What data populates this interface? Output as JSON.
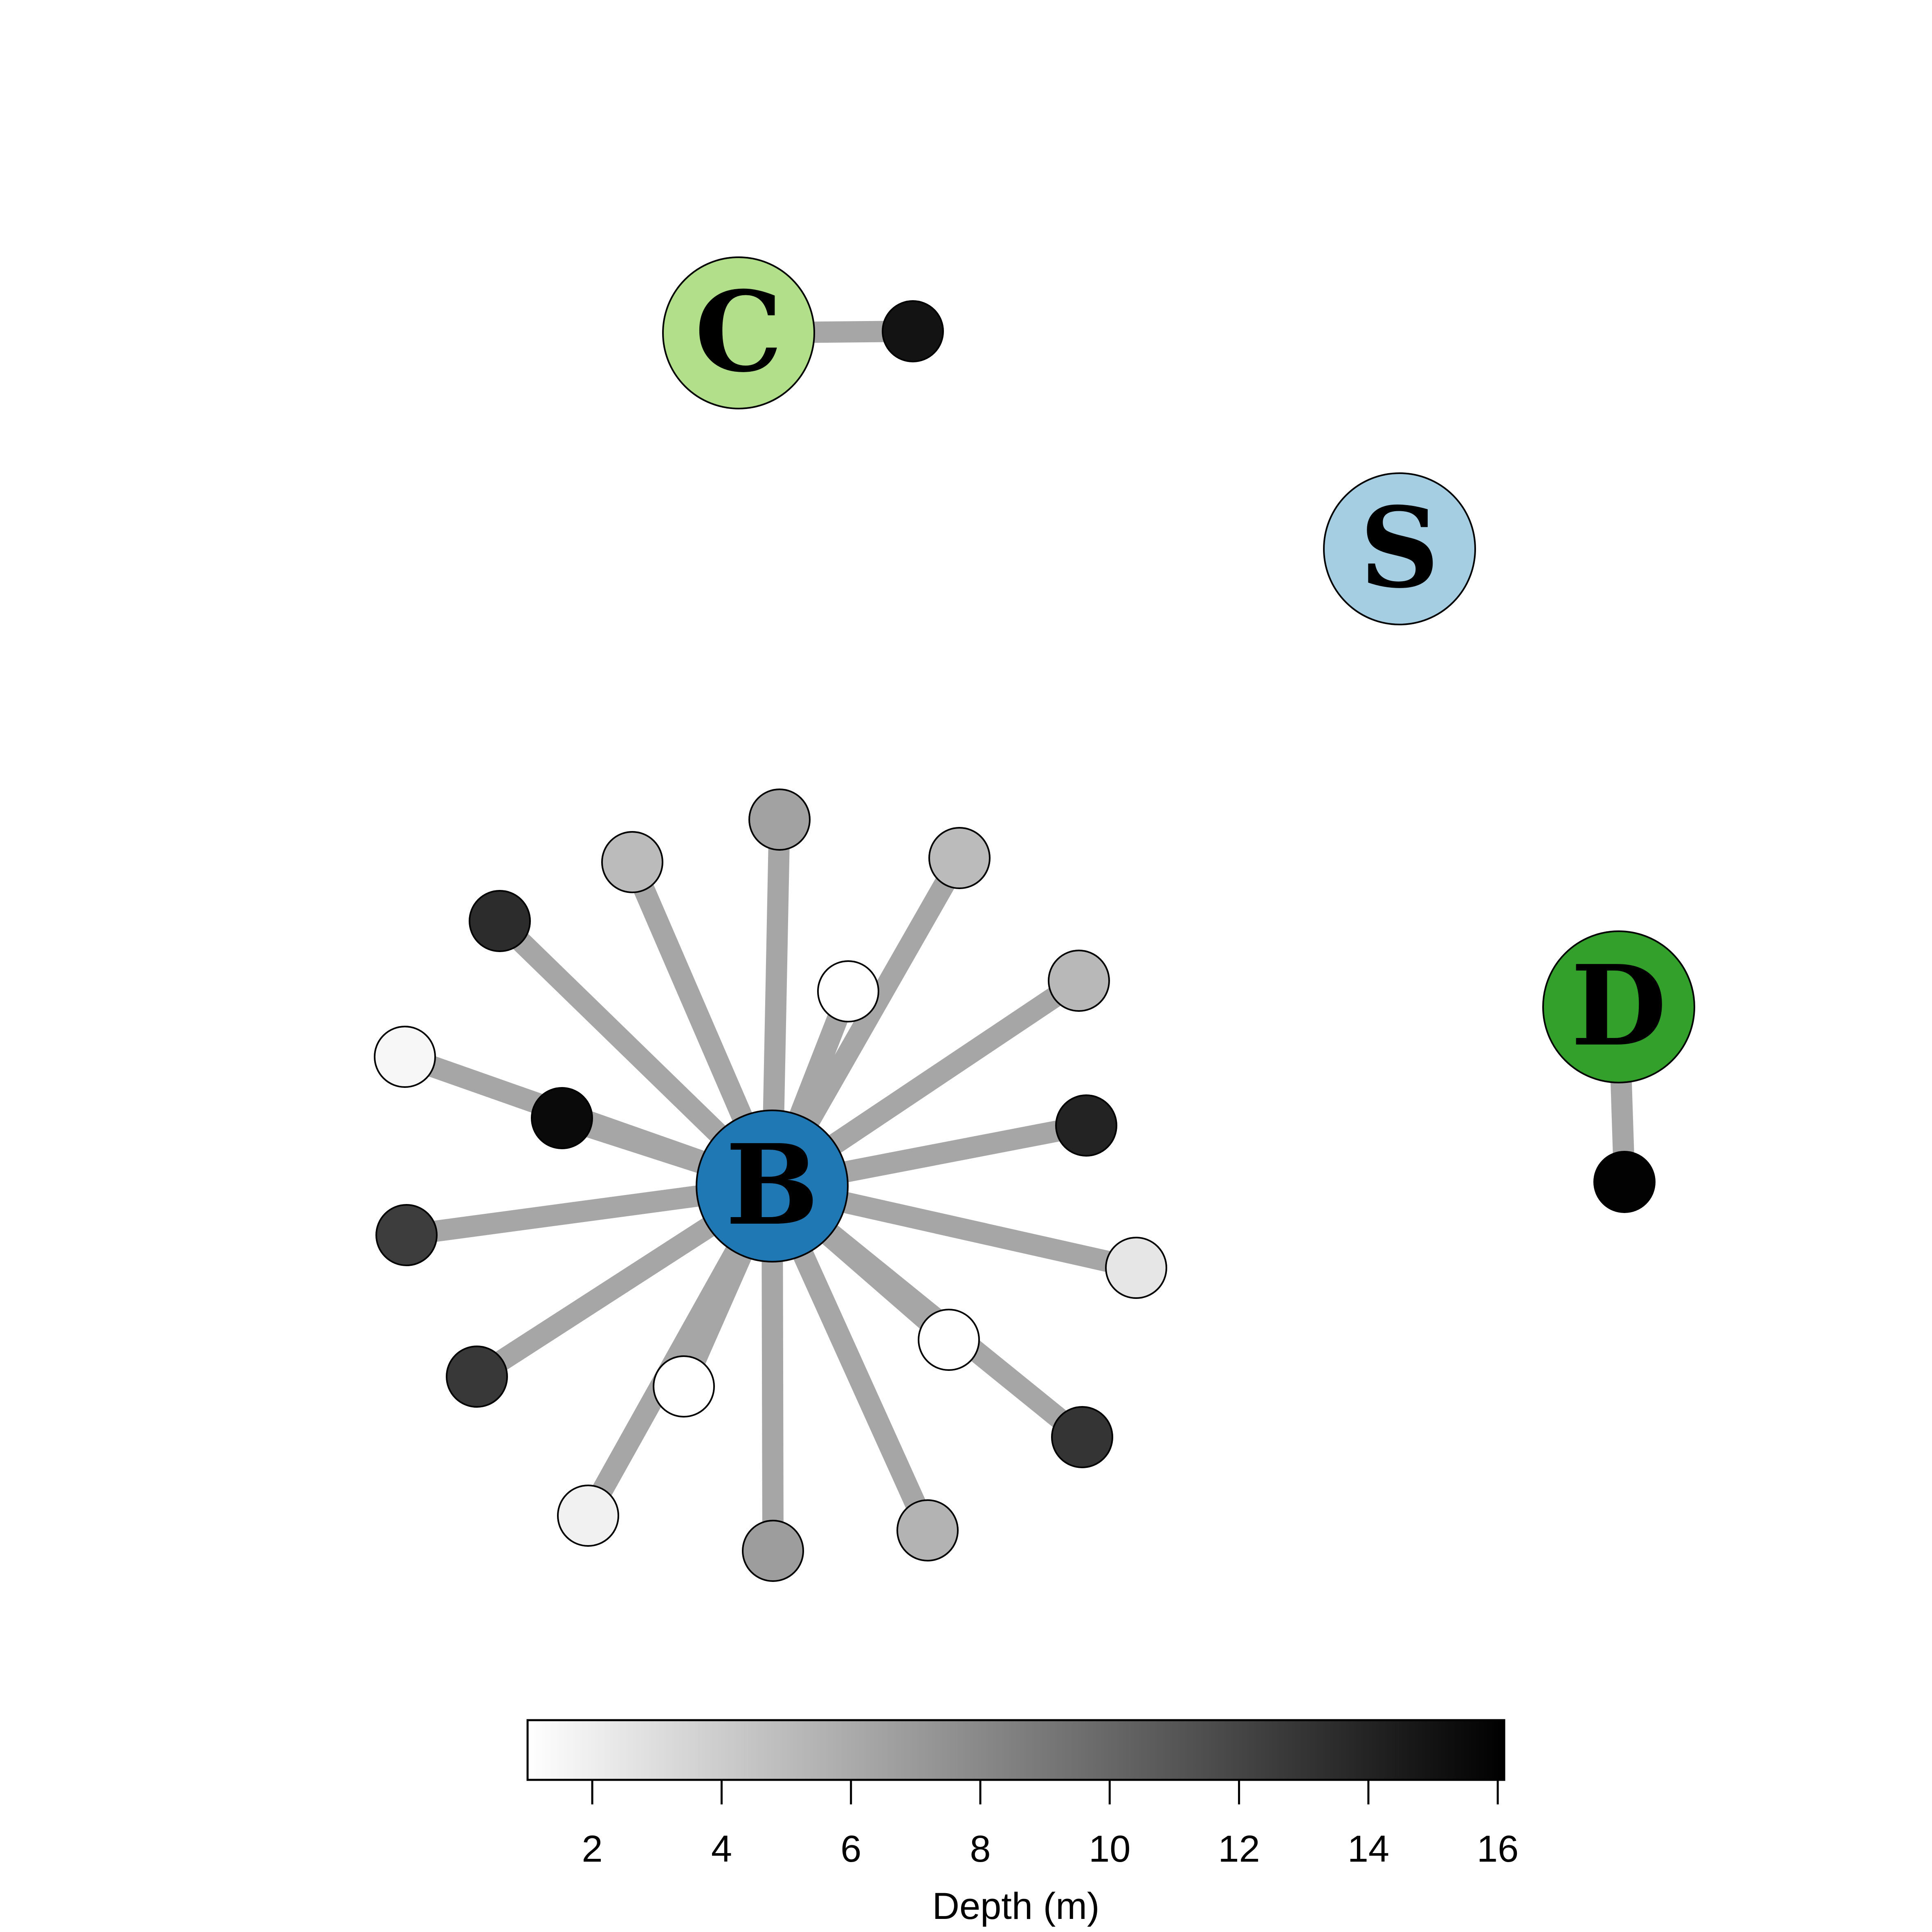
{
  "colorbar": {
    "title": "Depth (m)",
    "min": 1,
    "max": 16.1,
    "ticks": [
      "2",
      "4",
      "6",
      "8",
      "10",
      "12",
      "14",
      "16"
    ],
    "color_low": "#ffffff",
    "color_high": "#000000"
  },
  "edge_color": "#a6a6a6",
  "hubs": [
    {
      "id": "C",
      "label": "C",
      "color": "#b2df8a"
    },
    {
      "id": "S",
      "label": "S",
      "color": "#a6cee3"
    },
    {
      "id": "D",
      "label": "D",
      "color": "#33a02c"
    },
    {
      "id": "B",
      "label": "B",
      "color": "#1f78b4"
    }
  ],
  "leaves": [
    {
      "hub": "C",
      "depth": 15
    },
    {
      "hub": "D",
      "depth": 16
    },
    {
      "hub": "B",
      "depth": 6.5
    },
    {
      "hub": "B",
      "depth": 5
    },
    {
      "hub": "B",
      "depth": 5
    },
    {
      "hub": "B",
      "depth": 13.5
    },
    {
      "hub": "B",
      "depth": 1
    },
    {
      "hub": "B",
      "depth": 5.2
    },
    {
      "hub": "B",
      "depth": 1.5
    },
    {
      "hub": "B",
      "depth": 15.5
    },
    {
      "hub": "B",
      "depth": 14
    },
    {
      "hub": "B",
      "depth": 12.5
    },
    {
      "hub": "B",
      "depth": 2.5
    },
    {
      "hub": "B",
      "depth": 12.8
    },
    {
      "hub": "B",
      "depth": 1
    },
    {
      "hub": "B",
      "depth": 13
    },
    {
      "hub": "B",
      "depth": 1
    },
    {
      "hub": "B",
      "depth": 1.8
    },
    {
      "hub": "B",
      "depth": 6.8
    },
    {
      "hub": "B",
      "depth": 5.5
    }
  ]
}
